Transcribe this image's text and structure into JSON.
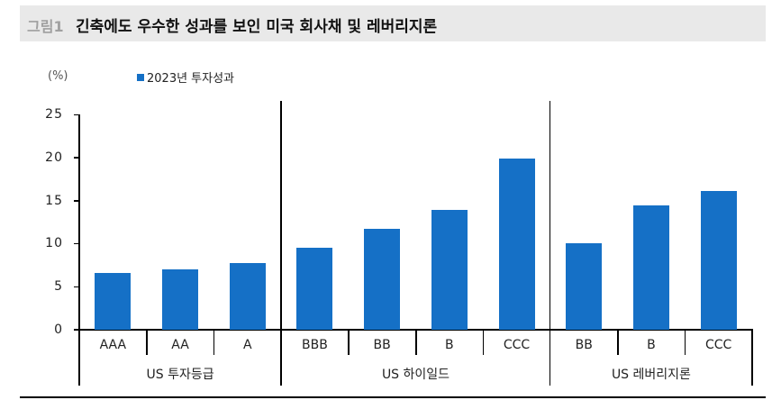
{
  "header": {
    "figure_label": "그림1",
    "title": "긴축에도 우수한 성과를 보인 미국 회사채 및 레버리지론"
  },
  "colors": {
    "bar": "#1570c6",
    "title_bg": "#e9e9e9"
  },
  "chart_data": {
    "type": "bar",
    "title": "긴축에도 우수한 성과를 보인 미국 회사채 및 레버리지론",
    "ylabel": "(%)",
    "xlabel": "",
    "ylim": [
      0,
      25
    ],
    "yticks": [
      0,
      5,
      10,
      15,
      20,
      25
    ],
    "legend": [
      "2023년 투자성과"
    ],
    "legend_position": "top",
    "grid": false,
    "groups": [
      {
        "name": "US 투자등급",
        "categories": [
          "AAA",
          "AA",
          "A"
        ],
        "values": [
          6.6,
          7.0,
          7.7
        ]
      },
      {
        "name": "US 하이일드",
        "categories": [
          "BBB",
          "BB",
          "B",
          "CCC"
        ],
        "values": [
          9.5,
          11.7,
          13.9,
          19.9
        ]
      },
      {
        "name": "US 레버리지론",
        "categories": [
          "BB",
          "B",
          "CCC"
        ],
        "values": [
          10.0,
          14.4,
          16.1
        ]
      }
    ],
    "categories": [
      "AAA",
      "AA",
      "A",
      "BBB",
      "BB",
      "B",
      "CCC",
      "BB",
      "B",
      "CCC"
    ],
    "series": [
      {
        "name": "2023년 투자성과",
        "values": [
          6.6,
          7.0,
          7.7,
          9.5,
          11.7,
          13.9,
          19.9,
          10.0,
          14.4,
          16.1
        ]
      }
    ]
  }
}
